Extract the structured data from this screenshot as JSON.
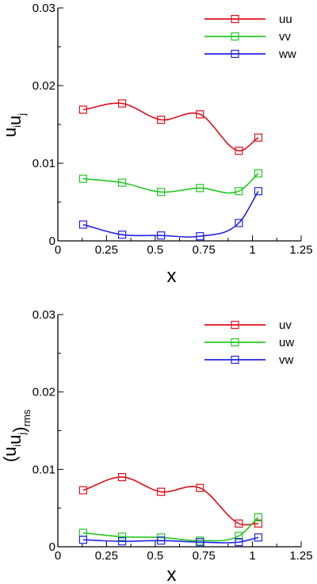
{
  "chart_data": [
    {
      "type": "line",
      "ylabel": {
        "main": "u",
        "sub1": "i",
        "mid": "u",
        "sub2": "j",
        "tail": ""
      },
      "xlabel": "x",
      "xlim": [
        0,
        1.25
      ],
      "ylim": [
        0,
        0.03
      ],
      "xticks": [
        "0",
        "0.25",
        "0.5",
        "0.75",
        "1",
        "1.25"
      ],
      "yticks": [
        "0",
        "0.01",
        "0.02",
        "0.03"
      ],
      "x": [
        0.13,
        0.33,
        0.53,
        0.73,
        0.93,
        1.03
      ],
      "legend_position": "top-right",
      "series": [
        {
          "name": "uu",
          "color": "#e0101c",
          "values": [
            0.0169,
            0.0177,
            0.0156,
            0.0163,
            0.0116,
            0.0133
          ]
        },
        {
          "name": "vv",
          "color": "#22c822",
          "values": [
            0.008,
            0.0075,
            0.0063,
            0.0068,
            0.0064,
            0.0087
          ]
        },
        {
          "name": "ww",
          "color": "#2222e6",
          "values": [
            0.0021,
            0.0008,
            0.0007,
            0.0006,
            0.0023,
            0.0064
          ]
        }
      ]
    },
    {
      "type": "line",
      "ylabel": {
        "main": "(u",
        "sub1": "i",
        "mid": "u",
        "sub2": "j",
        "tail": ")",
        "sub3": "rms"
      },
      "xlabel": "x",
      "xlim": [
        0,
        1.25
      ],
      "ylim": [
        0,
        0.03
      ],
      "xticks": [
        "0",
        "0.25",
        "0.5",
        "0.75",
        "1",
        "1.25"
      ],
      "yticks": [
        "0",
        "0.01",
        "0.02",
        "0.03"
      ],
      "x": [
        0.13,
        0.33,
        0.53,
        0.73,
        0.93,
        1.03
      ],
      "legend_position": "top-right",
      "series": [
        {
          "name": "uv",
          "color": "#e0101c",
          "values": [
            0.0073,
            0.009,
            0.0071,
            0.0076,
            0.003,
            0.003
          ]
        },
        {
          "name": "uw",
          "color": "#22c822",
          "values": [
            0.0018,
            0.0013,
            0.0012,
            0.0008,
            0.0014,
            0.0038
          ]
        },
        {
          "name": "vw",
          "color": "#2222e6",
          "values": [
            0.0009,
            0.0007,
            0.0008,
            0.0006,
            0.0006,
            0.0012
          ]
        }
      ]
    }
  ]
}
